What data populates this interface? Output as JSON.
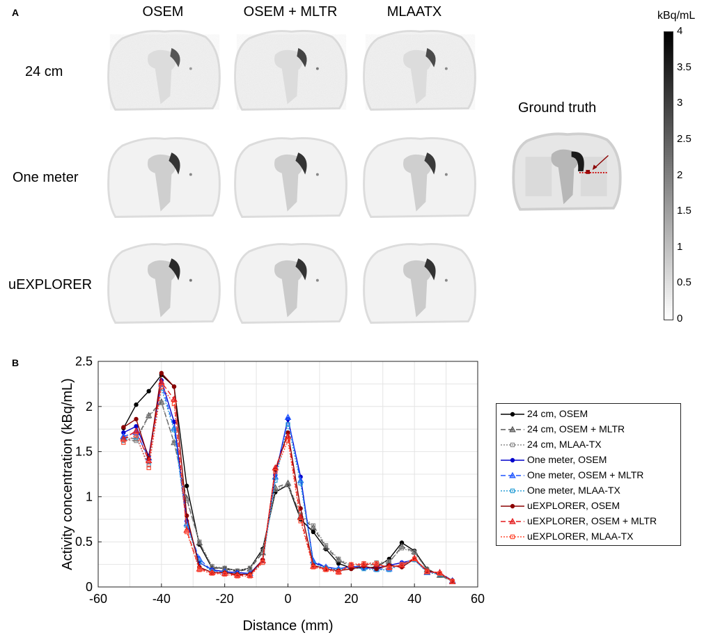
{
  "panel_a": {
    "label": "A",
    "columns": [
      "OSEM",
      "OSEM + MLTR",
      "MLAATX"
    ],
    "rows": [
      "24 cm",
      "One meter",
      "uEXPLORER"
    ],
    "ground_truth_label": "Ground truth",
    "colorbar": {
      "unit": "kBq/mL",
      "ticks": [
        "4",
        "3.5",
        "3",
        "2.5",
        "2",
        "1.5",
        "1",
        "0.5",
        "0"
      ],
      "min": 0,
      "max": 4
    }
  },
  "panel_b": {
    "label": "B"
  },
  "chart_data": {
    "type": "line",
    "title": "",
    "xlabel": "Distance (mm)",
    "ylabel": "Activity concentration (kBq/mL)",
    "xlim": [
      -60,
      60
    ],
    "ylim": [
      0,
      2.5
    ],
    "xticks": [
      -60,
      -40,
      -20,
      0,
      20,
      40,
      60
    ],
    "yticks": [
      0,
      0.5,
      1,
      1.5,
      2,
      2.5
    ],
    "grid": true,
    "legend_position": "right",
    "x": [
      -52,
      -48,
      -44,
      -40,
      -36,
      -32,
      -28,
      -24,
      -20,
      -16,
      -12,
      -8,
      -4,
      0,
      4,
      8,
      12,
      16,
      20,
      24,
      28,
      32,
      36,
      40,
      44,
      48,
      52
    ],
    "series": [
      {
        "name": "24 cm, OSEM",
        "color": "#000000",
        "dash": "",
        "marker": "circle",
        "values": [
          1.76,
          2.02,
          2.17,
          2.35,
          2.22,
          1.12,
          0.47,
          0.21,
          0.21,
          0.18,
          0.21,
          0.42,
          1.05,
          1.13,
          0.75,
          0.61,
          0.42,
          0.26,
          0.21,
          0.21,
          0.22,
          0.31,
          0.49,
          0.4,
          0.2,
          0.13,
          0.07
        ]
      },
      {
        "name": "24 cm, OSEM + MLTR",
        "color": "#555555",
        "dash": "7,4",
        "marker": "triangle",
        "values": [
          1.66,
          1.64,
          1.9,
          2.05,
          1.6,
          0.98,
          0.49,
          0.22,
          0.2,
          0.17,
          0.2,
          0.38,
          1.1,
          1.15,
          0.78,
          0.66,
          0.44,
          0.3,
          0.22,
          0.24,
          0.25,
          0.27,
          0.45,
          0.39,
          0.19,
          0.13,
          0.06
        ]
      },
      {
        "name": "24 cm, MLAA-TX",
        "color": "#8a8a8a",
        "dash": "2,2",
        "marker": "square",
        "values": [
          1.63,
          1.62,
          1.89,
          2.04,
          1.6,
          0.96,
          0.5,
          0.23,
          0.21,
          0.18,
          0.21,
          0.4,
          1.08,
          1.13,
          0.8,
          0.68,
          0.46,
          0.31,
          0.24,
          0.26,
          0.27,
          0.28,
          0.43,
          0.38,
          0.19,
          0.14,
          0.06
        ]
      },
      {
        "name": "One meter, OSEM",
        "color": "#0000cc",
        "dash": "",
        "marker": "circle",
        "values": [
          1.71,
          1.78,
          1.45,
          2.29,
          1.83,
          0.73,
          0.27,
          0.19,
          0.17,
          0.16,
          0.15,
          0.3,
          1.24,
          1.86,
          1.22,
          0.27,
          0.22,
          0.2,
          0.23,
          0.21,
          0.21,
          0.24,
          0.27,
          0.3,
          0.17,
          0.15,
          0.07
        ]
      },
      {
        "name": "One meter, OSEM + MLTR",
        "color": "#1f55ff",
        "dash": "7,4",
        "marker": "triangle",
        "values": [
          1.67,
          1.71,
          1.43,
          2.25,
          1.76,
          0.7,
          0.31,
          0.18,
          0.17,
          0.15,
          0.15,
          0.29,
          1.22,
          1.88,
          1.18,
          0.29,
          0.22,
          0.2,
          0.23,
          0.22,
          0.2,
          0.2,
          0.26,
          0.31,
          0.16,
          0.16,
          0.07
        ]
      },
      {
        "name": "One meter, MLAA-TX",
        "color": "#2a9fd6",
        "dash": "2,2",
        "marker": "square",
        "values": [
          1.62,
          1.66,
          1.35,
          2.2,
          1.74,
          0.68,
          0.28,
          0.17,
          0.16,
          0.14,
          0.14,
          0.27,
          1.18,
          1.8,
          1.15,
          0.26,
          0.21,
          0.19,
          0.22,
          0.2,
          0.19,
          0.19,
          0.25,
          0.3,
          0.16,
          0.14,
          0.06
        ]
      },
      {
        "name": "uEXPLORER, OSEM",
        "color": "#8b0000",
        "dash": "",
        "marker": "circle",
        "values": [
          1.77,
          1.86,
          1.42,
          2.37,
          2.22,
          0.79,
          0.22,
          0.16,
          0.16,
          0.14,
          0.14,
          0.3,
          1.3,
          1.71,
          0.87,
          0.24,
          0.2,
          0.18,
          0.2,
          0.23,
          0.2,
          0.24,
          0.22,
          0.31,
          0.18,
          0.15,
          0.07
        ]
      },
      {
        "name": "uEXPLORER, OSEM + MLTR",
        "color": "#e41a1c",
        "dash": "7,4",
        "marker": "triangle",
        "values": [
          1.64,
          1.73,
          1.4,
          2.27,
          2.08,
          0.63,
          0.2,
          0.16,
          0.15,
          0.13,
          0.13,
          0.29,
          1.32,
          1.67,
          0.77,
          0.23,
          0.2,
          0.17,
          0.24,
          0.25,
          0.25,
          0.22,
          0.24,
          0.32,
          0.17,
          0.16,
          0.06
        ]
      },
      {
        "name": "uEXPLORER, MLAA-TX",
        "color": "#ff4b33",
        "dash": "2,2",
        "marker": "square",
        "values": [
          1.6,
          1.68,
          1.32,
          2.22,
          2.03,
          0.61,
          0.19,
          0.15,
          0.14,
          0.12,
          0.12,
          0.27,
          1.28,
          1.62,
          0.73,
          0.22,
          0.19,
          0.16,
          0.25,
          0.26,
          0.26,
          0.21,
          0.25,
          0.31,
          0.17,
          0.15,
          0.06
        ]
      }
    ]
  }
}
